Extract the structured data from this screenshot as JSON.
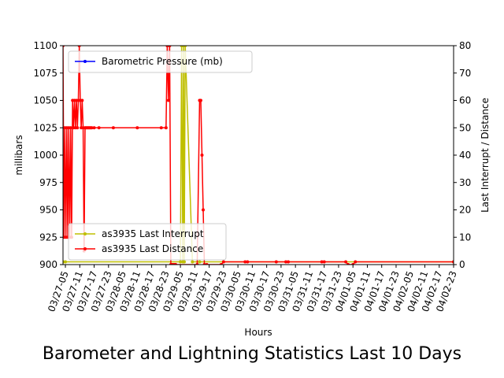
{
  "chart_data": {
    "type": "line",
    "title": "Barometer and Lightning Statistics Last 10 Days",
    "xlabel": "Hours",
    "ylabel_left": "millibars",
    "ylabel_right": "Last Interrupt / Distance",
    "ylim_left": [
      900,
      1100
    ],
    "ylim_right": [
      0,
      80
    ],
    "yticks_left": [
      "900",
      "925",
      "950",
      "975",
      "1000",
      "1025",
      "1050",
      "1075",
      "1100"
    ],
    "yticks_right": [
      "0",
      "10",
      "20",
      "30",
      "40",
      "50",
      "60",
      "70",
      "80"
    ],
    "x_tick_labels": [
      "03/27-05",
      "03/27-11",
      "03/27-17",
      "03/27-23",
      "03/28-05",
      "03/28-11",
      "03/28-17",
      "03/28-23",
      "03/29-05",
      "03/29-11",
      "03/29-17",
      "03/29-23",
      "03/30-05",
      "03/30-11",
      "03/30-17",
      "03/30-23",
      "03/31-05",
      "03/31-11",
      "03/31-17",
      "03/31-23",
      "04/01-05",
      "04/01-11",
      "04/01-17",
      "04/01-23",
      "04/02-05",
      "04/02-11",
      "04/02-17",
      "04/02-23"
    ],
    "x_range_hours": [
      -1,
      162
    ],
    "legend_upper": "upper left",
    "legend_lower": "lower left",
    "series": [
      {
        "name": "Barometric Pressure (mb)",
        "axis": "left",
        "color": "#0000ff",
        "marker": "circle",
        "x": [],
        "y": []
      },
      {
        "name": "as3935 Last Interrupt",
        "axis": "right",
        "color": "#bfbf00",
        "marker": "circle",
        "x": [
          -1,
          0,
          48,
          48.5,
          49,
          49.3,
          49.6,
          50,
          53,
          56,
          162
        ],
        "y": [
          1,
          1,
          1,
          80,
          1,
          80,
          1,
          80,
          1,
          1,
          1
        ]
      },
      {
        "name": "as3935 Last Distance",
        "axis": "right",
        "color": "#ff0000",
        "marker": "circle",
        "x": [
          -1,
          -0.6,
          -0.2,
          0.2,
          0.6,
          1.0,
          1.4,
          1.8,
          2.2,
          2.6,
          3.0,
          3.4,
          3.8,
          4.2,
          4.6,
          5.0,
          5.4,
          5.8,
          6.2,
          6.6,
          7.0,
          7.4,
          7.8,
          8.2,
          8.6,
          9.0,
          9.4,
          9.8,
          10.2,
          10.6,
          11,
          12,
          14,
          20,
          30,
          40,
          42,
          42.5,
          43,
          43.5,
          44,
          44.5,
          45,
          45.5,
          46,
          55,
          56,
          56.5,
          57,
          57.5,
          58,
          59,
          65,
          66,
          75,
          76,
          88,
          92,
          93,
          107,
          108,
          117,
          118,
          120,
          121,
          162
        ],
        "y": [
          80,
          10,
          50,
          10,
          50,
          10,
          50,
          10,
          50,
          10,
          60,
          50,
          60,
          50,
          60,
          50,
          60,
          80,
          60,
          50,
          60,
          50,
          5,
          50,
          50,
          50,
          50,
          50,
          50,
          50,
          50,
          50,
          50,
          50,
          50,
          50,
          50,
          80,
          60,
          80,
          0,
          0,
          0,
          0,
          0,
          0,
          60,
          60,
          40,
          20,
          0,
          0,
          0,
          1,
          1,
          1,
          1,
          1,
          1,
          1,
          1,
          1,
          0,
          0,
          1,
          1
        ]
      }
    ]
  }
}
